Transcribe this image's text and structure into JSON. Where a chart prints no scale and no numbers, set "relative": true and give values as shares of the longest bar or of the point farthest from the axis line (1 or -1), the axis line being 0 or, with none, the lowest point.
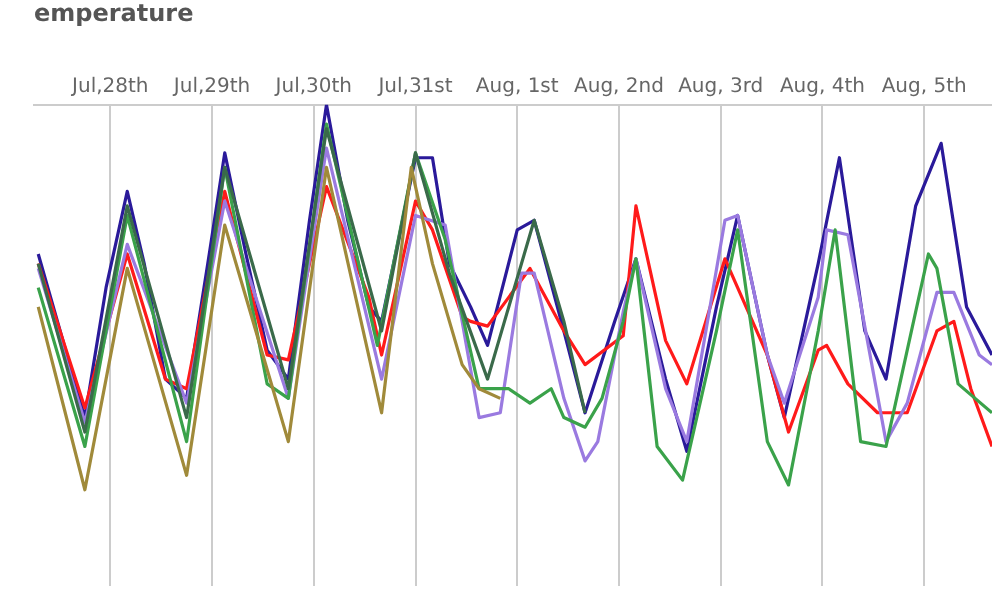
{
  "chart_data": {
    "type": "line",
    "title": "emperature",
    "relative": true,
    "grid": "x",
    "legend": false,
    "marker": "none",
    "line_style": "solid",
    "xlim": [
      "--07-27T18:00",
      "--08-06T04:00"
    ],
    "xticks": [
      {
        "value": "--07-28T12:00",
        "label": "Jul,28th"
      },
      {
        "value": "--07-29T12:00",
        "label": "Jul,29th"
      },
      {
        "value": "--07-30T12:00",
        "label": "Jul,30th"
      },
      {
        "value": "--07-31T12:00",
        "label": "Jul,31st"
      },
      {
        "value": "--08-01T12:00",
        "label": "Aug, 1st"
      },
      {
        "value": "--08-02T12:00",
        "label": "Aug, 2nd"
      },
      {
        "value": "--08-03T12:00",
        "label": "Aug, 3rd"
      },
      {
        "value": "--08-04T12:00",
        "label": "Aug, 4th"
      },
      {
        "value": "--08-05T12:00",
        "label": "Aug, 5th"
      }
    ],
    "series": [
      {
        "color": "#a08a3a",
        "x": [
          "--07-27T19:00",
          "--07-28T06:00",
          "--07-28T11:00",
          "--07-28T16:00",
          "--07-29T06:00",
          "--07-29T15:00",
          "--07-30T06:00",
          "--07-30T15:00",
          "--07-31T04:00",
          "--07-31T11:00",
          "--07-31T16:00",
          "--07-31T23:00",
          "--08-01T03:00",
          "--08-01T08:00"
        ],
        "values": [
          0.58,
          0.2,
          0.43,
          0.66,
          0.23,
          0.75,
          0.3,
          0.87,
          0.36,
          0.87,
          0.67,
          0.46,
          0.41,
          0.39
        ]
      },
      {
        "color": "#3a6a4a",
        "x": [
          "--07-27T19:00",
          "--07-28T06:00",
          "--07-28T16:00",
          "--07-29T06:00",
          "--07-29T15:00",
          "--07-30T06:00",
          "--07-30T15:00",
          "--07-31T04:00",
          "--07-31T12:00",
          "--07-31T20:00",
          "--08-01T05:00",
          "--08-01T16:00",
          "--08-01T23:00",
          "--08-02T04:00"
        ],
        "values": [
          0.67,
          0.32,
          0.79,
          0.35,
          0.87,
          0.41,
          0.95,
          0.53,
          0.9,
          0.65,
          0.43,
          0.76,
          0.55,
          0.36
        ]
      },
      {
        "color": "#3aa24a",
        "x": [
          "--07-27T19:00",
          "--07-28T06:00",
          "--07-28T16:00",
          "--07-29T06:00",
          "--07-29T15:00",
          "--07-30T01:00",
          "--07-30T06:00",
          "--07-30T15:00",
          "--07-31T03:00",
          "--07-31T12:00",
          "--07-31T19:00",
          "--08-01T03:00",
          "--08-01T10:00",
          "--08-01T15:00",
          "--08-01T20:00",
          "--08-01T23:00",
          "--08-02T04:00",
          "--08-02T08:00",
          "--08-02T13:00",
          "--08-02T16:00",
          "--08-02T21:00",
          "--08-03T03:00",
          "--08-03T11:00",
          "--08-03T16:00",
          "--08-03T23:00",
          "--08-04T04:00",
          "--08-04T11:00",
          "--08-04T15:00",
          "--08-04T21:00",
          "--08-05T03:00",
          "--08-05T13:00",
          "--08-05T15:00",
          "--08-05T20:00",
          "--08-06T04:00"
        ],
        "values": [
          0.62,
          0.29,
          0.77,
          0.3,
          0.87,
          0.42,
          0.39,
          0.96,
          0.5,
          0.9,
          0.72,
          0.41,
          0.41,
          0.38,
          0.41,
          0.35,
          0.33,
          0.39,
          0.55,
          0.68,
          0.29,
          0.22,
          0.53,
          0.74,
          0.3,
          0.21,
          0.53,
          0.74,
          0.3,
          0.29,
          0.69,
          0.66,
          0.42,
          0.36
        ]
      },
      {
        "color": "#9a7ae0",
        "x": [
          "--07-27T19:00",
          "--07-28T06:00",
          "--07-28T16:00",
          "--07-29T06:00",
          "--07-29T15:00",
          "--07-30T06:00",
          "--07-30T15:00",
          "--07-31T04:00",
          "--07-31T12:00",
          "--07-31T19:00",
          "--08-01T03:00",
          "--08-01T08:00",
          "--08-01T13:00",
          "--08-01T16:00",
          "--08-01T23:00",
          "--08-02T04:00",
          "--08-02T07:00",
          "--08-02T13:00",
          "--08-02T16:00",
          "--08-02T23:00",
          "--08-03T04:00",
          "--08-03T13:00",
          "--08-03T16:00",
          "--08-03T23:00",
          "--08-04T03:00",
          "--08-04T11:00",
          "--08-04T13:00",
          "--08-04T18:00",
          "--08-05T03:00",
          "--08-05T08:00",
          "--08-05T15:00",
          "--08-05T19:00",
          "--08-06T01:00",
          "--08-06T04:00"
        ],
        "values": [
          0.66,
          0.34,
          0.71,
          0.38,
          0.8,
          0.39,
          0.91,
          0.43,
          0.77,
          0.75,
          0.35,
          0.36,
          0.65,
          0.65,
          0.39,
          0.26,
          0.3,
          0.57,
          0.68,
          0.41,
          0.3,
          0.76,
          0.77,
          0.48,
          0.38,
          0.6,
          0.74,
          0.73,
          0.3,
          0.38,
          0.61,
          0.61,
          0.48,
          0.46
        ]
      },
      {
        "color": "#ff1a1a",
        "x": [
          "--07-27T19:00",
          "--07-28T06:00",
          "--07-28T11:00",
          "--07-28T16:00",
          "--07-29T01:00",
          "--07-29T06:00",
          "--07-29T15:00",
          "--07-30T01:00",
          "--07-30T06:00",
          "--07-30T15:00",
          "--07-31T01:00",
          "--07-31T04:00",
          "--07-31T12:00",
          "--07-31T16:00",
          "--07-31T23:00",
          "--08-01T01:00",
          "--08-01T05:00",
          "--08-01T15:00",
          "--08-01T23:00",
          "--08-02T04:00",
          "--08-02T13:00",
          "--08-02T16:00",
          "--08-02T23:00",
          "--08-03T04:00",
          "--08-03T13:00",
          "--08-03T23:00",
          "--08-04T04:00",
          "--08-04T11:00",
          "--08-04T13:00",
          "--08-04T18:00",
          "--08-05T01:00",
          "--08-05T08:00",
          "--08-05T15:00",
          "--08-05T19:00",
          "--08-05T23:00",
          "--08-06T04:00"
        ],
        "values": [
          0.67,
          0.37,
          0.53,
          0.69,
          0.43,
          0.41,
          0.82,
          0.48,
          0.47,
          0.83,
          0.6,
          0.48,
          0.8,
          0.74,
          0.56,
          0.55,
          0.54,
          0.66,
          0.53,
          0.46,
          0.52,
          0.79,
          0.51,
          0.42,
          0.68,
          0.48,
          0.32,
          0.49,
          0.5,
          0.42,
          0.36,
          0.36,
          0.53,
          0.55,
          0.41,
          0.29
        ]
      },
      {
        "color": "#2a1a9a",
        "x": [
          "--07-27T19:00",
          "--07-28T06:00",
          "--07-28T11:00",
          "--07-28T16:00",
          "--07-28T20:00",
          "--07-29T01:00",
          "--07-29T06:00",
          "--07-29T11:00",
          "--07-29T15:00",
          "--07-29T20:00",
          "--07-30T01:00",
          "--07-30T06:00",
          "--07-30T11:00",
          "--07-30T15:00",
          "--07-30T20:00",
          "--07-31T01:00",
          "--07-31T04:00",
          "--07-31T08:00",
          "--07-31T12:00",
          "--07-31T16:00",
          "--07-31T20:00",
          "--08-01T01:00",
          "--08-01T05:00",
          "--08-01T12:00",
          "--08-01T16:00",
          "--08-01T23:00",
          "--08-02T04:00",
          "--08-02T11:00",
          "--08-02T16:00",
          "--08-02T23:00",
          "--08-03T04:00",
          "--08-03T11:00",
          "--08-03T16:00",
          "--08-03T23:00",
          "--08-04T03:00",
          "--08-04T11:00",
          "--08-04T16:00",
          "--08-04T22:00",
          "--08-05T03:00",
          "--08-05T10:00",
          "--08-05T16:00",
          "--08-05T22:00",
          "--08-06T04:00"
        ],
        "values": [
          0.69,
          0.35,
          0.62,
          0.82,
          0.67,
          0.43,
          0.39,
          0.67,
          0.9,
          0.69,
          0.49,
          0.43,
          0.76,
          1.0,
          0.76,
          0.58,
          0.55,
          0.72,
          0.89,
          0.89,
          0.67,
          0.58,
          0.5,
          0.74,
          0.76,
          0.53,
          0.36,
          0.55,
          0.68,
          0.43,
          0.28,
          0.58,
          0.77,
          0.48,
          0.35,
          0.67,
          0.89,
          0.53,
          0.43,
          0.79,
          0.92,
          0.58,
          0.48
        ]
      }
    ]
  }
}
